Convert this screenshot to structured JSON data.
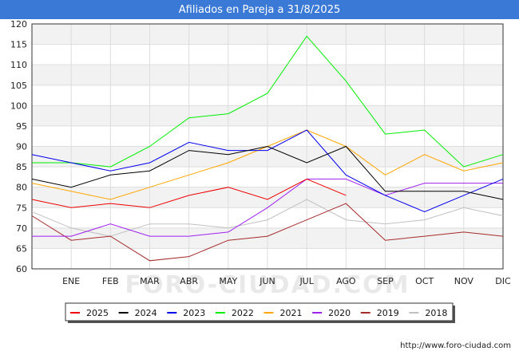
{
  "chart_data": {
    "type": "line",
    "title": "Afiliados en Pareja a 31/8/2025",
    "categories": [
      "",
      "ENE",
      "FEB",
      "MAR",
      "ABR",
      "MAY",
      "JUN",
      "JUL",
      "AGO",
      "SEP",
      "OCT",
      "NOV",
      "DIC"
    ],
    "ylim": [
      60,
      120
    ],
    "yticks": [
      60,
      65,
      70,
      75,
      80,
      85,
      90,
      95,
      100,
      105,
      110,
      115,
      120
    ],
    "grid": true,
    "legend_position": "bottom",
    "watermark": "FORO-CIUDAD.COM",
    "series": [
      {
        "name": "2025",
        "color": "#ee0000",
        "values": [
          77,
          75,
          76,
          75,
          78,
          80,
          77,
          82,
          78,
          null,
          null,
          null,
          null
        ]
      },
      {
        "name": "2024",
        "color": "#000000",
        "values": [
          82,
          80,
          83,
          84,
          89,
          88,
          90,
          86,
          90,
          79,
          79,
          79,
          77
        ]
      },
      {
        "name": "2023",
        "color": "#0000ee",
        "values": [
          88,
          86,
          84,
          86,
          91,
          89,
          89,
          94,
          83,
          78,
          74,
          78,
          82
        ]
      },
      {
        "name": "2022",
        "color": "#00ee00",
        "values": [
          86,
          86,
          85,
          90,
          97,
          98,
          103,
          117,
          106,
          93,
          94,
          85,
          88
        ]
      },
      {
        "name": "2021",
        "color": "#ffa500",
        "values": [
          81,
          79,
          77,
          80,
          83,
          86,
          90,
          94,
          90,
          83,
          88,
          84,
          86
        ]
      },
      {
        "name": "2020",
        "color": "#a020f0",
        "values": [
          68,
          68,
          71,
          68,
          68,
          69,
          75,
          82,
          82,
          78,
          81,
          81,
          81
        ]
      },
      {
        "name": "2019",
        "color": "#a52a2a",
        "values": [
          73,
          67,
          68,
          62,
          63,
          67,
          68,
          72,
          76,
          67,
          68,
          69,
          68
        ]
      },
      {
        "name": "2018",
        "color": "#c0c0c0",
        "values": [
          74,
          70,
          68,
          71,
          71,
          70,
          72,
          77,
          72,
          71,
          72,
          75,
          73
        ]
      }
    ]
  },
  "footer": {
    "url": "http://www.foro-ciudad.com"
  }
}
